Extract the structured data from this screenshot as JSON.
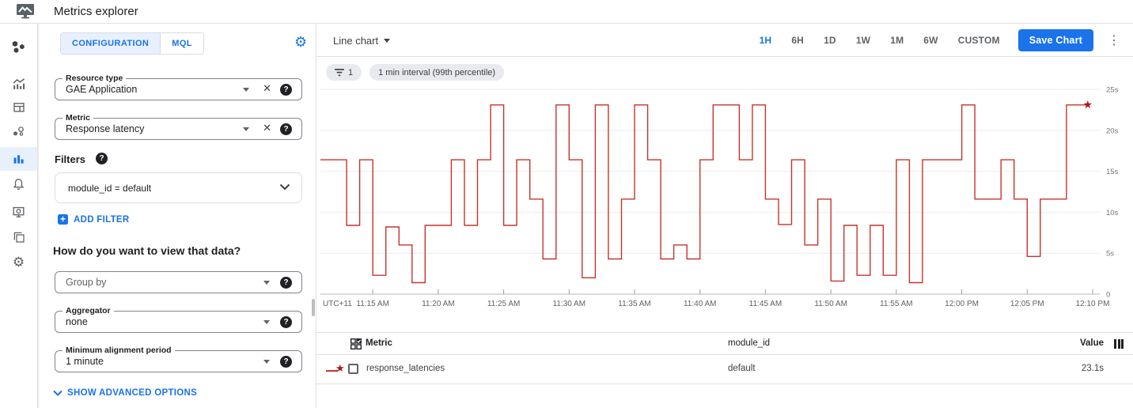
{
  "app": {
    "title": "Metrics explorer"
  },
  "rail": {
    "items": [
      {
        "name": "monitoring-overview"
      },
      {
        "name": "metrics"
      },
      {
        "name": "dashboards"
      },
      {
        "name": "services"
      },
      {
        "name": "metrics-explorer",
        "active": true
      },
      {
        "name": "alerting"
      },
      {
        "name": "uptime-checks"
      },
      {
        "name": "groups"
      },
      {
        "name": "settings"
      }
    ]
  },
  "config": {
    "tabs": [
      {
        "label": "CONFIGURATION",
        "active": true
      },
      {
        "label": "MQL",
        "active": false
      }
    ],
    "resource_type": {
      "label": "Resource type",
      "value": "GAE Application"
    },
    "metric": {
      "label": "Metric",
      "value": "Response latency"
    },
    "filters_heading": "Filters",
    "filter_chip": "module_id = default",
    "add_filter_label": "ADD FILTER",
    "view_heading": "How do you want to view that data?",
    "group_by": {
      "placeholder": "Group by"
    },
    "aggregator": {
      "label": "Aggregator",
      "value": "none"
    },
    "min_alignment": {
      "label": "Minimum alignment period",
      "value": "1 minute"
    },
    "advanced_label": "SHOW ADVANCED OPTIONS",
    "help_glyph": "?"
  },
  "toolbar": {
    "chart_type": "Line chart",
    "ranges": [
      "1H",
      "6H",
      "1D",
      "1W",
      "1M",
      "6W",
      "CUSTOM"
    ],
    "active_range": "1H",
    "save_label": "Save Chart",
    "menu_glyph": "⋮"
  },
  "chips": {
    "filter_count": "1",
    "interval": "1 min interval (99th percentile)"
  },
  "chart_data": {
    "type": "line",
    "step": true,
    "title": "",
    "xlabel": "",
    "ylabel": "",
    "unit": "seconds",
    "ylim": [
      0,
      25
    ],
    "grid": true,
    "timezone_label": "UTC+11",
    "y_ticks": [
      0,
      5,
      10,
      15,
      20,
      25
    ],
    "y_tick_labels": [
      "0",
      "5s",
      "10s",
      "15s",
      "20s",
      "25s"
    ],
    "x_tick_labels": [
      "11:15 AM",
      "11:20 AM",
      "11:25 AM",
      "11:30 AM",
      "11:35 AM",
      "11:40 AM",
      "11:45 AM",
      "11:50 AM",
      "11:55 AM",
      "12:00 PM",
      "12:05 PM",
      "12:10 PM"
    ],
    "first_tick_minute": 4,
    "tick_interval_minutes": 5,
    "minutes_per_point": 1,
    "series": [
      {
        "name": "response_latencies",
        "color": "#c5352b",
        "end_marker": "star",
        "end_marker_color": "#b31412",
        "values": [
          16.4,
          16.4,
          8.4,
          16.4,
          2.3,
          8.2,
          6.0,
          1.4,
          8.4,
          8.4,
          16.4,
          8.4,
          16.4,
          23.1,
          8.4,
          16.4,
          11.6,
          4.3,
          23.1,
          16.4,
          2.0,
          23.1,
          4.3,
          11.6,
          23.1,
          16.4,
          4.3,
          6.0,
          4.3,
          16.4,
          23.1,
          23.1,
          16.4,
          23.1,
          11.6,
          8.5,
          16.4,
          6.0,
          11.6,
          1.6,
          8.4,
          2.3,
          8.4,
          2.3,
          16.4,
          1.4,
          16.4,
          16.4,
          16.4,
          23.1,
          11.6,
          11.6,
          16.4,
          11.6,
          4.6,
          11.6,
          11.6,
          23.1,
          23.1
        ]
      }
    ],
    "latest_value": "23.1s"
  },
  "table": {
    "headers": {
      "metric": "Metric",
      "module": "module_id",
      "value": "Value"
    },
    "rows": [
      {
        "metric": "response_latencies",
        "module": "default",
        "value": "23.1s"
      }
    ]
  },
  "colors": {
    "accent": "#1a73e8",
    "line": "#c5352b",
    "star": "#b31412",
    "active_bg": "#e8f0fe"
  }
}
